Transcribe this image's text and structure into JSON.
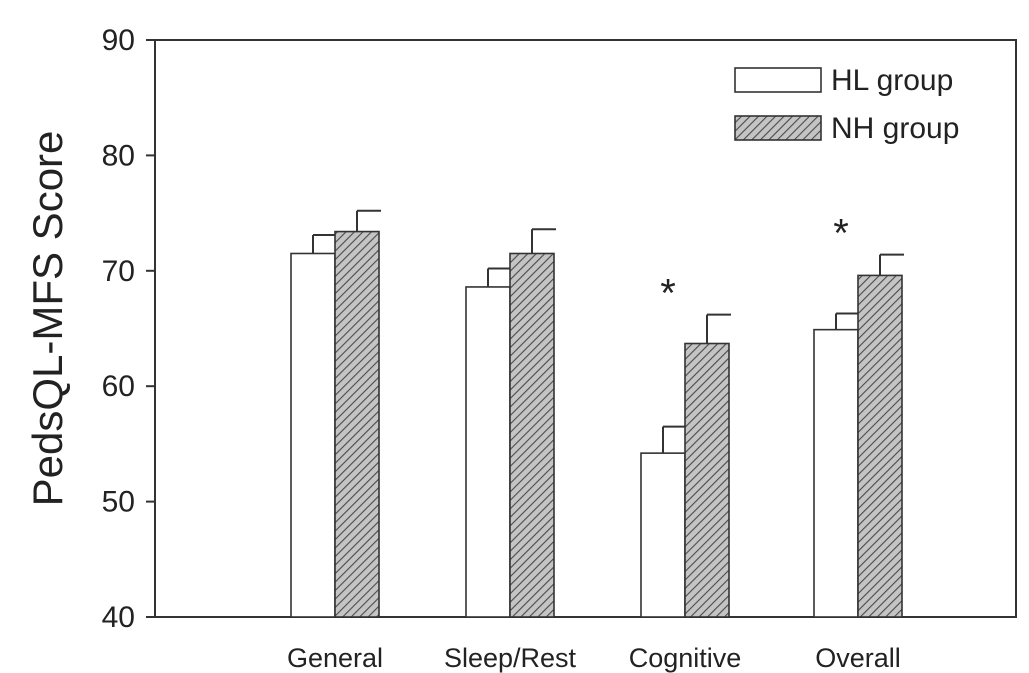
{
  "chart_data": {
    "type": "bar",
    "title": "",
    "xlabel": "",
    "ylabel": "PedsQL-MFS Score",
    "ylim": [
      40,
      90
    ],
    "yticks": [
      40,
      50,
      60,
      70,
      80,
      90
    ],
    "categories": [
      "General",
      "Sleep/Rest",
      "Cognitive",
      "Overall"
    ],
    "series": [
      {
        "name": "HL group",
        "values": [
          71.5,
          68.6,
          54.2,
          64.9
        ],
        "errors": [
          1.6,
          1.6,
          2.3,
          1.4
        ],
        "color": "#ffffff",
        "pattern": "none"
      },
      {
        "name": "NH group",
        "values": [
          73.4,
          71.5,
          63.7,
          69.6
        ],
        "errors": [
          1.8,
          2.1,
          2.5,
          1.8
        ],
        "color": "#b8b8b8",
        "pattern": "diagonal-hatch"
      }
    ],
    "annotations": [
      {
        "category": "Cognitive",
        "text": "*"
      },
      {
        "category": "Overall",
        "text": "*"
      }
    ],
    "grid": false,
    "legend_position": "top-right"
  }
}
